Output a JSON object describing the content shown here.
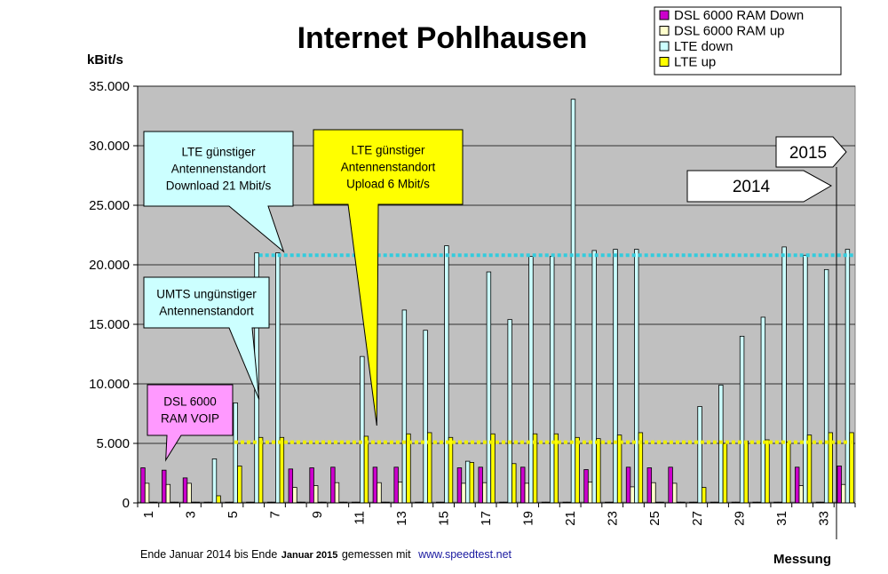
{
  "chart_data": {
    "type": "bar",
    "title": "Internet Pohlhausen",
    "ylabel": "kBit/s",
    "xlabel": "Messung",
    "ylim": [
      0,
      35000
    ],
    "yticks": [
      "0",
      "5.000",
      "10.000",
      "15.000",
      "20.000",
      "25.000",
      "30.000",
      "35.000"
    ],
    "grid": true,
    "legend_position": "top-right",
    "categories": [
      "1",
      "2",
      "3",
      "4",
      "5",
      "6",
      "7",
      "8",
      "9",
      "10",
      "11",
      "12",
      "13",
      "14",
      "15",
      "16",
      "17",
      "18",
      "19",
      "20",
      "21",
      "22",
      "23",
      "24",
      "25",
      "26",
      "27",
      "28",
      "29",
      "30",
      "31",
      "32",
      "33",
      "34"
    ],
    "xtick_labels": [
      "1",
      "3",
      "5",
      "7",
      "9",
      "11",
      "13",
      "15",
      "17",
      "19",
      "21",
      "23",
      "25",
      "27",
      "29",
      "31",
      "33"
    ],
    "series": [
      {
        "name": "DSL 6000 RAM Down",
        "color": "#cc00cc",
        "values": [
          2950,
          2750,
          2100,
          0,
          0,
          0,
          0,
          2850,
          2950,
          3000,
          0,
          3000,
          3000,
          0,
          0,
          2950,
          3000,
          0,
          3000,
          0,
          0,
          2800,
          0,
          3000,
          2950,
          3000,
          0,
          0,
          0,
          0,
          0,
          3000,
          0,
          3100
        ]
      },
      {
        "name": "DSL 6000 RAM up",
        "color": "#ffffcc",
        "values": [
          1650,
          1550,
          1650,
          0,
          0,
          0,
          0,
          1300,
          1450,
          1700,
          0,
          1700,
          1750,
          0,
          0,
          1650,
          1700,
          0,
          1650,
          0,
          0,
          1750,
          0,
          1350,
          1700,
          1650,
          0,
          0,
          0,
          0,
          0,
          1450,
          0,
          1550
        ]
      },
      {
        "name": "LTE down",
        "color": "#ccffff",
        "values": [
          0,
          0,
          0,
          3700,
          8400,
          21000,
          21000,
          0,
          0,
          0,
          12300,
          0,
          16200,
          14500,
          21600,
          3500,
          19400,
          15400,
          20700,
          20700,
          33900,
          21200,
          21300,
          21300,
          0,
          0,
          8100,
          9900,
          14000,
          15600,
          21500,
          20800,
          19600,
          21300
        ]
      },
      {
        "name": "LTE up",
        "color": "#ffff00",
        "values": [
          0,
          0,
          0,
          600,
          3100,
          5500,
          5500,
          0,
          0,
          0,
          5600,
          0,
          5800,
          5900,
          5500,
          3400,
          5800,
          3300,
          5800,
          5800,
          5500,
          5400,
          5700,
          5900,
          0,
          0,
          1300,
          5000,
          5200,
          5300,
          5100,
          5700,
          5900,
          5900
        ]
      }
    ],
    "reference_lines": [
      {
        "label": "LTE down reference",
        "value": 20800,
        "color": "#33ccdd"
      },
      {
        "label": "LTE up reference",
        "value": 5100,
        "color": "#eeee00"
      }
    ],
    "annotations": [
      {
        "id": "dsl",
        "lines": [
          "DSL 6000",
          "RAM VOIP"
        ],
        "color": "#ff99ff",
        "target_index": 1,
        "target_value": 3000
      },
      {
        "id": "umts",
        "lines": [
          "UMTS ungünstiger",
          "Antennenstandort"
        ],
        "color": "#ccffff",
        "target_index": 5,
        "target_value": 8400
      },
      {
        "id": "lte_down",
        "lines": [
          "LTE günstiger",
          "Antennenstandort",
          "Download 21 Mbit/s"
        ],
        "color": "#ccffff",
        "target_index": 6,
        "target_value": 20800
      },
      {
        "id": "lte_up",
        "lines": [
          "LTE günstiger",
          "Antennenstandort",
          "Upload 6 Mbit/s"
        ],
        "color": "#ffff00",
        "target_index": 11,
        "target_value": 5600
      }
    ],
    "period_markers": [
      {
        "label": "2015"
      },
      {
        "label": "2014"
      }
    ]
  },
  "footer": {
    "text_start": "Ende Januar 2014 bis Ende",
    "text_bold": "Januar 2015",
    "text_mid": "gemessen mit",
    "link": "www.speedtest.net"
  }
}
